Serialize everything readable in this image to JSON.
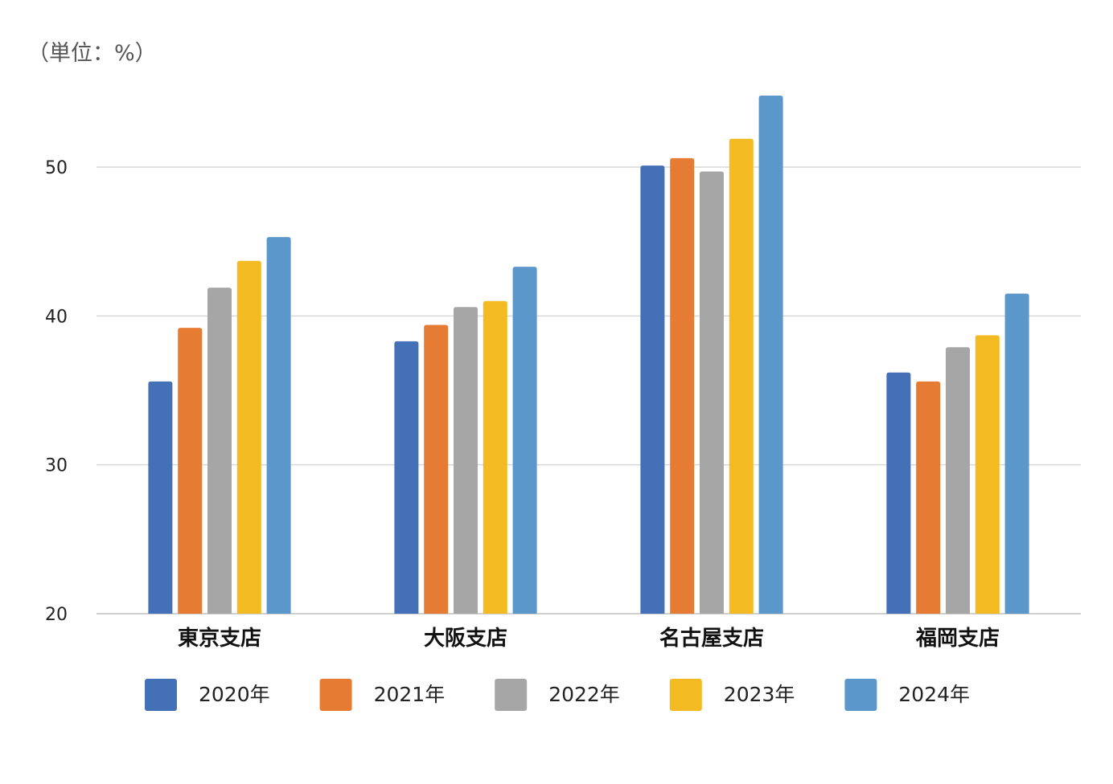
{
  "unit_label": "（単位：%）",
  "chart_data": {
    "type": "bar",
    "categories": [
      "東京支店",
      "大阪支店",
      "名古屋支店",
      "福岡支店"
    ],
    "series": [
      {
        "name": "2020年",
        "color": "#4470B8",
        "values": [
          35.6,
          38.3,
          50.1,
          36.2
        ]
      },
      {
        "name": "2021年",
        "color": "#E67C34",
        "values": [
          39.2,
          39.4,
          50.6,
          35.6
        ]
      },
      {
        "name": "2022年",
        "color": "#A6A6A6",
        "values": [
          41.9,
          40.6,
          49.7,
          37.9
        ]
      },
      {
        "name": "2023年",
        "color": "#F3BA22",
        "values": [
          43.7,
          41.0,
          51.9,
          38.7
        ]
      },
      {
        "name": "2024年",
        "color": "#5B97CB",
        "values": [
          45.3,
          43.3,
          54.8,
          41.5
        ]
      }
    ],
    "ylim": [
      20,
      55
    ],
    "yticks": [
      20,
      30,
      40,
      50
    ],
    "grid": true,
    "legend_position": "bottom"
  }
}
